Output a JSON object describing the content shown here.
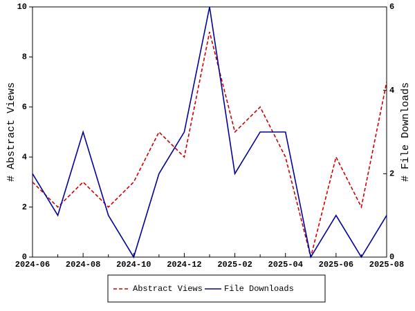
{
  "chart_data": {
    "type": "line",
    "categories": [
      "2024-06",
      null,
      "2024-08",
      null,
      "2024-10",
      null,
      "2024-12",
      null,
      "2025-02",
      null,
      "2025-04",
      null,
      "2025-06",
      null,
      "2025-08"
    ],
    "y_label": "# Abstract Views",
    "y2_label": "# File Downloads",
    "ylim": [
      0,
      10
    ],
    "yticks": [
      0,
      2,
      4,
      6,
      8,
      10
    ],
    "y2lim": [
      0,
      6
    ],
    "y2ticks": [
      0,
      2,
      4,
      6
    ],
    "legend": "bottom",
    "series": [
      {
        "name": "Abstract Views",
        "color": "#cc0000",
        "dashed": true,
        "values": [
          3,
          2,
          3,
          2,
          3,
          5,
          4,
          9,
          5,
          6,
          4,
          0,
          4,
          2,
          7
        ]
      },
      {
        "name": "File Downloads",
        "color": "#000099",
        "dashed": false,
        "axis": "y2",
        "values": [
          2,
          1,
          3,
          1,
          0,
          2,
          3,
          6,
          2,
          3,
          3,
          0,
          1,
          0,
          1
        ]
      }
    ]
  }
}
